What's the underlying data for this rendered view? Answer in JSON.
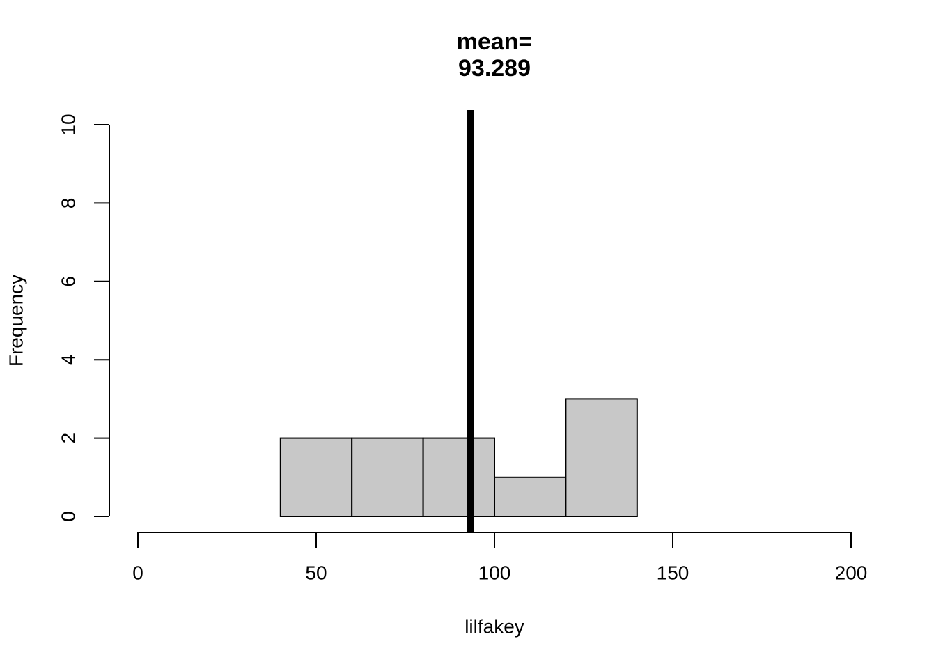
{
  "chart_data": {
    "type": "histogram",
    "title": "mean=",
    "vline": {
      "value": 93.289,
      "color": "#000000"
    },
    "xlabel": "lilfakey",
    "ylabel": "Frequency",
    "bins": [
      40,
      60,
      80,
      100,
      120,
      140
    ],
    "counts": [
      2,
      2,
      2,
      1,
      3
    ],
    "color": "#c8c8c8",
    "xlim": [
      0,
      200
    ],
    "xticks": [
      0,
      50,
      100,
      150,
      200
    ],
    "ylim": [
      0,
      10
    ],
    "yticks": [
      0,
      2,
      4,
      6,
      8,
      10
    ]
  }
}
